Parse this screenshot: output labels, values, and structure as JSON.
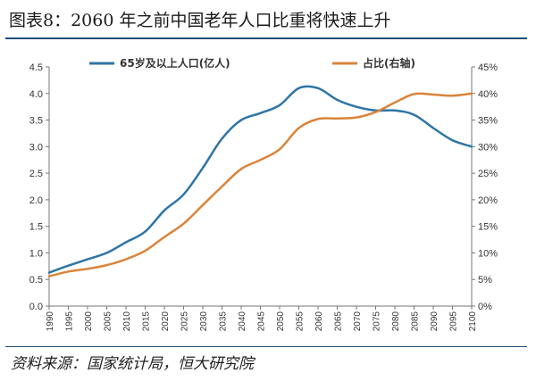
{
  "title": "图表8：2060 年之前中国老年人口比重将快速上升",
  "source": "资料来源：国家统计局，恒大研究院",
  "colors": {
    "population": "#2e75a6",
    "share": "#d9843b",
    "accent": "#1f4e79"
  },
  "chart_data": {
    "type": "line",
    "legend_position": "top",
    "grid": false,
    "x": [
      1990,
      1995,
      2000,
      2005,
      2010,
      2015,
      2020,
      2025,
      2030,
      2035,
      2040,
      2045,
      2050,
      2055,
      2060,
      2065,
      2070,
      2075,
      2080,
      2085,
      2090,
      2095,
      2100
    ],
    "xlim": [
      1990,
      2100
    ],
    "x_ticks": [
      "1990",
      "1995",
      "2000",
      "2005",
      "2010",
      "2015",
      "2020",
      "2025",
      "2030",
      "2035",
      "2040",
      "2045",
      "2050",
      "2055",
      "2060",
      "2065",
      "2070",
      "2075",
      "2080",
      "2085",
      "2090",
      "2095",
      "2100"
    ],
    "ylim_left": [
      0,
      4.5
    ],
    "y_left_ticks": [
      "0.0",
      "0.5",
      "1.0",
      "1.5",
      "2.0",
      "2.5",
      "3.0",
      "3.5",
      "4.0",
      "4.5"
    ],
    "ylim_right": [
      0,
      45
    ],
    "y_right_ticks": [
      "0%",
      "5%",
      "10%",
      "15%",
      "20%",
      "25%",
      "30%",
      "35%",
      "40%",
      "45%"
    ],
    "series": [
      {
        "name": "65岁及以上人口(亿人)",
        "axis": "left",
        "color": "#2e75a6",
        "values": [
          0.63,
          0.76,
          0.88,
          1.0,
          1.2,
          1.4,
          1.8,
          2.1,
          2.6,
          3.15,
          3.5,
          3.63,
          3.78,
          4.1,
          4.1,
          3.88,
          3.75,
          3.68,
          3.68,
          3.6,
          3.35,
          3.12,
          3.0
        ]
      },
      {
        "name": "占比(右轴)",
        "axis": "right",
        "color": "#d9843b",
        "values": [
          5.6,
          6.5,
          7.0,
          7.7,
          8.8,
          10.4,
          13.0,
          15.5,
          19.0,
          22.5,
          25.8,
          27.5,
          29.5,
          33.5,
          35.2,
          35.3,
          35.5,
          36.5,
          38.3,
          39.9,
          39.8,
          39.6,
          40.0
        ]
      }
    ]
  }
}
